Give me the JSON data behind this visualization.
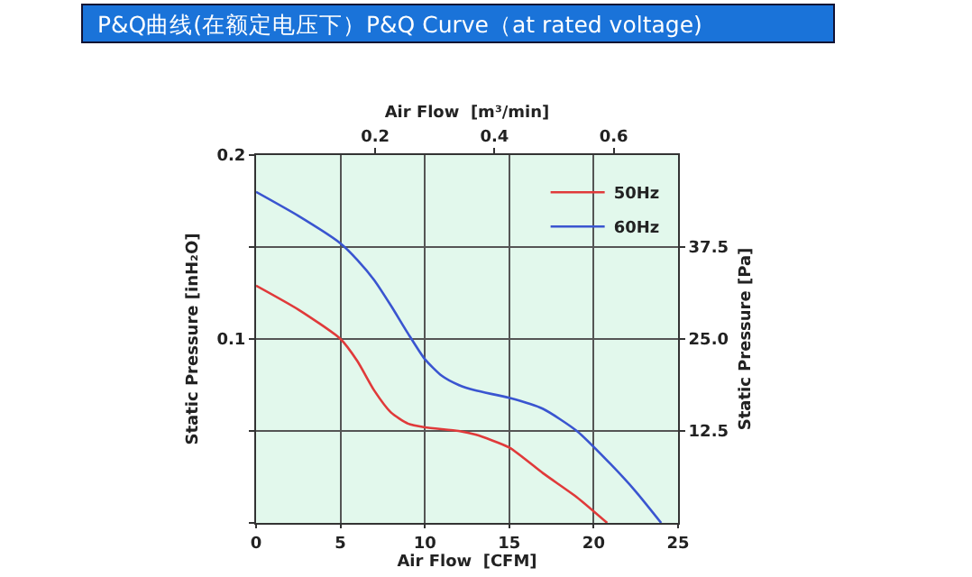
{
  "chart_data": {
    "type": "line",
    "title": "P&Q曲线(在额定电压下）P&Q Curve（at rated voltage)",
    "xlabel": "Air Flow  [CFM]",
    "ylabel": "Static Pressure [inH₂O]",
    "y2label": "Static Pressure [Pa]",
    "x2label": "Air Flow  [m³/min]",
    "xlim": [
      0,
      25
    ],
    "xticks": [
      0,
      5,
      10,
      15,
      20,
      25
    ],
    "ylim": [
      0,
      0.2
    ],
    "yticks": [
      {
        "value": 0,
        "label": null
      },
      {
        "value": 0.05,
        "label": null
      },
      0.1,
      {
        "value": 0.15,
        "label": null
      },
      0.2
    ],
    "y2lim": [
      0,
      50
    ],
    "y2ticks": [
      12.5,
      {
        "value": 25,
        "label": "25.0"
      },
      37.5
    ],
    "x2lim": [
      0,
      0.708
    ],
    "x2ticks": [
      0.2,
      0.4,
      0.6
    ],
    "grid": true,
    "legend": "top right",
    "marker": "none",
    "line_style": "solid",
    "series": [
      {
        "name": "50Hz",
        "color": "#e03a3a",
        "x": [
          0,
          2.5,
          5,
          6,
          7,
          8,
          9,
          10,
          12,
          13,
          15,
          17,
          19,
          20.8
        ],
        "values": [
          0.129,
          0.116,
          0.1,
          0.088,
          0.072,
          0.06,
          0.054,
          0.052,
          0.05,
          0.048,
          0.041,
          0.027,
          0.014,
          0
        ]
      },
      {
        "name": "60Hz",
        "color": "#3a55d0",
        "x": [
          0,
          2.5,
          5,
          6,
          7,
          8,
          9,
          10,
          11,
          12,
          13,
          15,
          17,
          19,
          21,
          22.5,
          24
        ],
        "values": [
          0.18,
          0.167,
          0.152,
          0.143,
          0.132,
          0.118,
          0.103,
          0.089,
          0.08,
          0.075,
          0.072,
          0.068,
          0.062,
          0.05,
          0.032,
          0.017,
          0
        ]
      }
    ]
  }
}
